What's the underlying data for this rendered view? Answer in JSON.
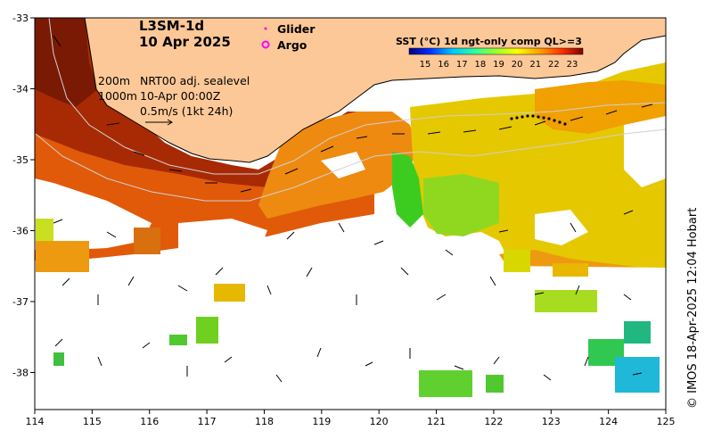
{
  "map": {
    "title_line1": "L3SM-1d",
    "title_line2": "10 Apr 2025",
    "legend": {
      "glider_label": "Glider",
      "glider_color": "#ff00ff",
      "argo_label": "Argo",
      "argo_color": "#ff00ff"
    },
    "colorbar": {
      "title": "SST (°C) 1d ngt-only comp QL>=3",
      "ticks": [
        "15",
        "16",
        "17",
        "18",
        "19",
        "20",
        "21",
        "22",
        "23"
      ],
      "colors": [
        "#00007f",
        "#0000d5",
        "#0040ff",
        "#00a0ff",
        "#00e8ff",
        "#40ffb8",
        "#7fff7f",
        "#b8ff40",
        "#ffe800",
        "#ffa000",
        "#ff4000",
        "#d50000",
        "#7f0000"
      ]
    },
    "annotations": {
      "contour_200": "200m",
      "contour_1000": "1000m",
      "current_source": "NRT00 adj. sealevel",
      "current_time": "10-Apr 00:00Z",
      "scale_arrow": "0.5m/s (1kt 24h)"
    },
    "x_axis_ticks": [
      "114",
      "115",
      "116",
      "117",
      "118",
      "119",
      "120",
      "121",
      "122",
      "123",
      "124",
      "125"
    ],
    "y_axis_ticks": [
      "-33",
      "-34",
      "-35",
      "-36",
      "-37",
      "-38"
    ],
    "credit": "© IMOS 18-Apr-2025 12:04 Hobart",
    "colors": {
      "land": "#fcc897",
      "coast": "#000000",
      "contour": "#cccccc",
      "sst_warm": "#8b1a00",
      "sst_mid": "#e07a00",
      "sst_cool": "#d8d800",
      "sst_cold": "#30d030"
    }
  }
}
